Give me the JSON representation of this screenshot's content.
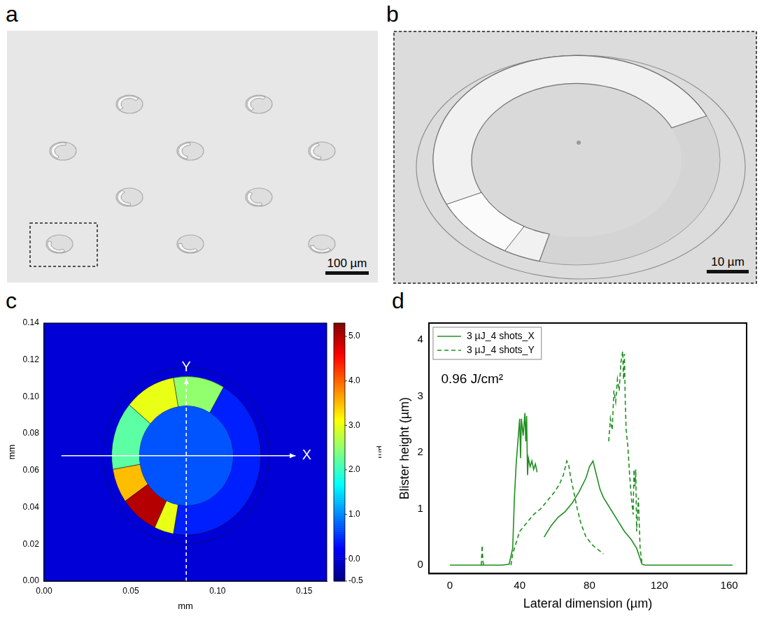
{
  "images": [
    {
      "panel": "a",
      "scale_bar": "100 µm"
    },
    {
      "panel": "b",
      "scale_bar": "10 µm"
    }
  ],
  "chart_data": [
    {
      "panel": "c",
      "type": "heatmap",
      "x_label": "mm",
      "y_label": "mm",
      "xlim": [
        0,
        0.163
      ],
      "xticks": [
        {
          "value": 0,
          "label": "0.00"
        },
        {
          "value": 0.05,
          "label": "0.05"
        },
        {
          "value": 0.1,
          "label": "0.10"
        },
        {
          "value": 0.15,
          "label": "0.15"
        }
      ],
      "ylim": [
        0,
        0.14
      ],
      "yticks": [
        {
          "value": 0,
          "label": "0.00"
        },
        {
          "value": 0.02,
          "label": "0.02"
        },
        {
          "value": 0.04,
          "label": "0.04"
        },
        {
          "value": 0.06,
          "label": "0.06"
        },
        {
          "value": 0.08,
          "label": "0.08"
        },
        {
          "value": 0.1,
          "label": "0.10"
        },
        {
          "value": 0.12,
          "label": "0.12"
        },
        {
          "value": 0.14,
          "label": "0.14"
        }
      ],
      "grid": false,
      "colorbar": {
        "label": "µm",
        "range": [
          -0.5,
          5.3
        ],
        "ticks": [
          -0.5,
          {
            "value": 0,
            "label": "0.0"
          },
          {
            "value": 1,
            "label": "1.0"
          },
          {
            "value": 2,
            "label": "2.0"
          },
          {
            "value": 3,
            "label": "3.0"
          },
          {
            "value": 4,
            "label": "4.0"
          },
          {
            "value": 5,
            "label": "5.0"
          }
        ]
      },
      "blister": {
        "center": [
          0.082,
          0.068
        ],
        "inner_radius": 0.027,
        "outer_radius": 0.043,
        "ring_radius": 0.048,
        "background_height": 0,
        "floor_height": 0.7,
        "rim": [
          {
            "from": -100,
            "to": 60,
            "height": 0.4
          },
          {
            "from": 60,
            "to": 100,
            "height": 2.5
          },
          {
            "from": 100,
            "to": 140,
            "height": 3.0
          },
          {
            "from": 140,
            "to": 190,
            "height": 2.2
          },
          {
            "from": 190,
            "to": 215,
            "height": 3.5
          },
          {
            "from": 215,
            "to": 245,
            "height": 5.0
          },
          {
            "from": 245,
            "to": 260,
            "height": 3.0
          }
        ]
      },
      "profile_lines": [
        {
          "label": "X",
          "from": [
            0.01,
            0.068
          ],
          "to": [
            0.145,
            0.068
          ],
          "line_style": "solid"
        },
        {
          "label": "Y",
          "from": [
            0.082,
            0.0
          ],
          "to": [
            0.082,
            0.11
          ],
          "line_style": "dashed"
        }
      ]
    },
    {
      "panel": "d",
      "type": "line",
      "x_label": "Lateral dimension (µm)",
      "y_label": "Blister height (µm)",
      "xlim": [
        -12,
        170
      ],
      "xticks": [
        0,
        40,
        80,
        120,
        160
      ],
      "ylim": [
        -0.15,
        4.3
      ],
      "yticks": [
        0,
        1,
        2,
        3,
        4
      ],
      "grid": false,
      "legend": "upper left",
      "annotations": [
        {
          "text": "0.96 J/cm²",
          "x": -5,
          "y": 3.3
        }
      ],
      "series": [
        {
          "name": "3 µJ_4 shots_X",
          "color": "#1f8f1f",
          "line_style": "solid",
          "x": [
            0,
            10,
            20,
            30,
            34,
            36,
            37,
            38,
            39,
            40,
            40.5,
            41,
            42,
            43,
            43.5,
            44,
            44.5,
            45,
            46,
            47,
            48,
            49,
            50,
            52,
            54,
            58,
            62,
            66,
            70,
            74,
            78,
            80,
            82,
            84,
            86,
            88,
            92,
            96,
            100,
            104,
            107,
            109,
            110,
            112,
            120,
            140,
            162
          ],
          "values": [
            0,
            0,
            0,
            0,
            0.02,
            0.3,
            1.2,
            1.8,
            2.2,
            2.6,
            1.9,
            2.6,
            2.3,
            2.7,
            2.2,
            2.65,
            1.6,
            1.9,
            1.75,
            1.85,
            1.7,
            1.8,
            1.65,
            null,
            0.5,
            0.7,
            0.85,
            0.95,
            1.1,
            1.3,
            1.55,
            1.75,
            1.85,
            1.6,
            1.35,
            1.2,
            1.0,
            0.8,
            0.6,
            0.45,
            0.3,
            0.12,
            0.02,
            0,
            0,
            0,
            0
          ]
        },
        {
          "name": "3 µJ_4 shots_Y",
          "color": "#1f8f1f",
          "line_style": "dashed",
          "x": [
            18,
            18.5,
            19,
            19.5,
            27,
            35,
            36,
            38,
            40,
            44,
            48,
            52,
            56,
            60,
            63,
            65,
            67,
            68,
            69,
            71,
            73,
            75,
            78,
            82,
            86,
            88,
            89,
            91,
            92,
            93,
            94,
            95,
            96,
            97,
            98,
            99,
            99.5,
            100,
            100.5,
            101,
            102,
            103,
            104,
            105,
            105.5,
            106,
            106.5,
            107,
            108,
            109,
            110,
            111
          ],
          "values": [
            0,
            0.35,
            0.05,
            0,
            null,
            0,
            0.2,
            0.4,
            0.6,
            0.75,
            0.9,
            1.0,
            1.15,
            1.3,
            1.45,
            1.6,
            1.85,
            1.8,
            1.6,
            1.3,
            1.0,
            0.75,
            0.5,
            0.35,
            0.25,
            0.2,
            null,
            2.2,
            2.6,
            2.4,
            3.1,
            2.9,
            3.3,
            3.1,
            3.6,
            3.8,
            3.3,
            3.75,
            2.9,
            2.4,
            2.1,
            1.6,
            1.2,
            0.9,
            1.7,
            1.4,
            1.7,
            0.6,
            1.2,
            0.3,
            0.05,
            0
          ]
        }
      ]
    }
  ]
}
